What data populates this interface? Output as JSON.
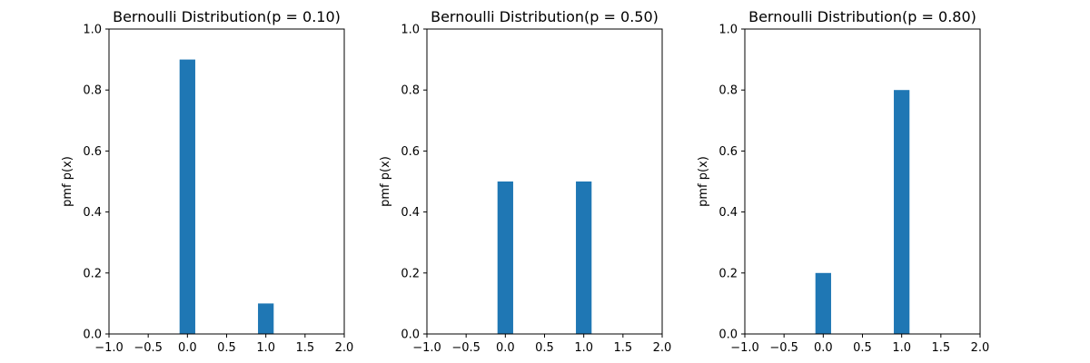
{
  "chart_data": [
    {
      "type": "bar",
      "title": "Bernoulli Distribution(p = 0.10)",
      "ylabel": "pmf p(x)",
      "xlabel": "",
      "x": [
        0,
        1
      ],
      "values": [
        0.9,
        0.1
      ],
      "bar_width": 0.2,
      "xlim": [
        -1.0,
        2.0
      ],
      "ylim": [
        0.0,
        1.0
      ],
      "xticks": [
        "−1.0",
        "−0.5",
        "0.0",
        "0.5",
        "1.0",
        "1.5",
        "2.0"
      ],
      "yticks": [
        "0.0",
        "0.2",
        "0.4",
        "0.6",
        "0.8",
        "1.0"
      ],
      "color": "#1f77b4",
      "grid": false
    },
    {
      "type": "bar",
      "title": "Bernoulli Distribution(p = 0.50)",
      "ylabel": "pmf p(x)",
      "xlabel": "",
      "x": [
        0,
        1
      ],
      "values": [
        0.5,
        0.5
      ],
      "bar_width": 0.2,
      "xlim": [
        -1.0,
        2.0
      ],
      "ylim": [
        0.0,
        1.0
      ],
      "xticks": [
        "−1.0",
        "−0.5",
        "0.0",
        "0.5",
        "1.0",
        "1.5",
        "2.0"
      ],
      "yticks": [
        "0.0",
        "0.2",
        "0.4",
        "0.6",
        "0.8",
        "1.0"
      ],
      "color": "#1f77b4",
      "grid": false
    },
    {
      "type": "bar",
      "title": "Bernoulli Distribution(p = 0.80)",
      "ylabel": "pmf p(x)",
      "xlabel": "",
      "x": [
        0,
        1
      ],
      "values": [
        0.2,
        0.8
      ],
      "bar_width": 0.2,
      "xlim": [
        -1.0,
        2.0
      ],
      "ylim": [
        0.0,
        1.0
      ],
      "xticks": [
        "−1.0",
        "−0.5",
        "0.0",
        "0.5",
        "1.0",
        "1.5",
        "2.0"
      ],
      "yticks": [
        "0.0",
        "0.2",
        "0.4",
        "0.6",
        "0.8",
        "1.0"
      ],
      "color": "#1f77b4",
      "grid": false
    }
  ]
}
